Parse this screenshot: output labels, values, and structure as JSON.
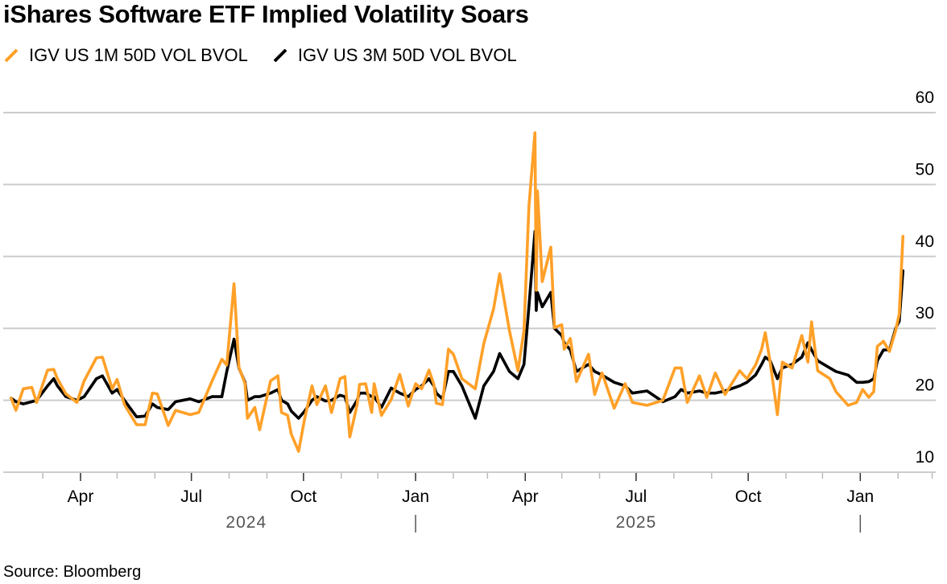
{
  "chart_data": {
    "type": "line",
    "title": "iShares Software ETF Implied Volatility Soars",
    "source": "Source: Bloomberg",
    "ylim": [
      10,
      60
    ],
    "yticks": [
      10,
      20,
      30,
      40,
      50,
      60
    ],
    "y_axis_side": "right",
    "grid": true,
    "legend_placement": "top-left",
    "xlim": [
      "2024-02-04",
      "2026-02-05"
    ],
    "xtick_labels": [
      {
        "label": "Apr",
        "date": "2024-04-01"
      },
      {
        "label": "Jul",
        "date": "2024-07-01"
      },
      {
        "label": "Oct",
        "date": "2024-10-01"
      },
      {
        "label": "Jan",
        "date": "2025-01-01"
      },
      {
        "label": "Apr",
        "date": "2025-04-01"
      },
      {
        "label": "Jul",
        "date": "2025-07-01"
      },
      {
        "label": "Oct",
        "date": "2025-10-01"
      },
      {
        "label": "Jan",
        "date": "2026-01-01"
      }
    ],
    "year_labels": [
      {
        "label": "2024",
        "date": "2024-08-15"
      },
      {
        "label": "2025",
        "date": "2025-07-01"
      }
    ],
    "dates": [
      "2024-02-04",
      "2024-02-08",
      "2024-02-14",
      "2024-02-21",
      "2024-02-25",
      "2024-03-05",
      "2024-03-10",
      "2024-03-13",
      "2024-03-20",
      "2024-03-29",
      "2024-04-04",
      "2024-04-14",
      "2024-04-19",
      "2024-04-27",
      "2024-05-01",
      "2024-05-07",
      "2024-05-17",
      "2024-05-24",
      "2024-05-30",
      "2024-06-03",
      "2024-06-12",
      "2024-06-18",
      "2024-06-30",
      "2024-07-07",
      "2024-07-18",
      "2024-07-26",
      "2024-07-30",
      "2024-08-05",
      "2024-08-09",
      "2024-08-14",
      "2024-08-16",
      "2024-08-22",
      "2024-08-26",
      "2024-09-04",
      "2024-09-10",
      "2024-09-13",
      "2024-09-18",
      "2024-09-21",
      "2024-09-27",
      "2024-10-02",
      "2024-10-08",
      "2024-10-12",
      "2024-10-19",
      "2024-10-24",
      "2024-10-31",
      "2024-11-04",
      "2024-11-08",
      "2024-11-14",
      "2024-11-16",
      "2024-11-21",
      "2024-11-26",
      "2024-11-28",
      "2024-12-04",
      "2024-12-12",
      "2024-12-19",
      "2024-12-26",
      "2025-01-01",
      "2025-01-06",
      "2025-01-12",
      "2025-01-16",
      "2025-01-18",
      "2025-01-23",
      "2025-01-28",
      "2025-02-01",
      "2025-02-08",
      "2025-02-19",
      "2025-02-26",
      "2025-03-06",
      "2025-03-11",
      "2025-03-19",
      "2025-03-26",
      "2025-03-31",
      "2025-04-04",
      "2025-04-09",
      "2025-04-10",
      "2025-04-11",
      "2025-04-15",
      "2025-04-22",
      "2025-04-25",
      "2025-05-01",
      "2025-05-03",
      "2025-05-08",
      "2025-05-13",
      "2025-05-23",
      "2025-05-28",
      "2025-06-03",
      "2025-06-13",
      "2025-06-22",
      "2025-06-28",
      "2025-07-10",
      "2025-07-23",
      "2025-08-02",
      "2025-08-07",
      "2025-08-12",
      "2025-08-22",
      "2025-08-28",
      "2025-09-04",
      "2025-09-12",
      "2025-09-24",
      "2025-09-30",
      "2025-10-07",
      "2025-10-12",
      "2025-10-15",
      "2025-10-19",
      "2025-10-25",
      "2025-10-29",
      "2025-11-06",
      "2025-11-14",
      "2025-11-19",
      "2025-11-22",
      "2025-11-27",
      "2025-12-07",
      "2025-12-12",
      "2025-12-22",
      "2025-12-29",
      "2026-01-03",
      "2026-01-08",
      "2026-01-12",
      "2026-01-15",
      "2026-01-20",
      "2026-01-25",
      "2026-01-30",
      "2026-02-02",
      "2026-02-05"
    ],
    "series": [
      {
        "name": "IGV US 3M 50D VOL BVOL",
        "color": "#000000",
        "values": [
          20.3,
          19.8,
          19.5,
          19.8,
          20,
          22,
          23,
          22,
          20.5,
          20,
          20.5,
          23,
          23.4,
          21,
          21.5,
          20,
          17.7,
          17.8,
          19.5,
          19,
          18.7,
          19.8,
          20.2,
          19.8,
          20.5,
          20.5,
          24,
          28.5,
          24.5,
          22.5,
          20,
          20.5,
          20.5,
          21,
          21.5,
          20,
          19.5,
          18.5,
          17.5,
          18.5,
          20,
          20.5,
          19.9,
          20,
          20.7,
          20.5,
          18.3,
          20,
          21,
          21,
          20.5,
          20.5,
          19,
          21.7,
          21,
          20.5,
          21.5,
          22,
          23,
          22,
          21,
          20.2,
          24,
          24,
          22,
          17.5,
          22,
          24,
          26.5,
          24,
          23,
          25,
          33,
          43.5,
          32.5,
          35,
          33,
          35,
          30,
          29,
          28,
          27,
          24,
          25,
          24,
          23.5,
          22.5,
          22,
          21,
          21.3,
          19.8,
          20.5,
          21.5,
          21,
          21.3,
          21,
          21,
          21.3,
          22,
          22.5,
          23.5,
          25,
          26,
          25.5,
          23,
          24.5,
          25,
          26,
          28,
          27,
          25.5,
          24.5,
          24,
          23.5,
          22.5,
          22.5,
          22.6,
          23,
          25.5,
          27,
          27,
          30,
          31,
          38
        ]
      },
      {
        "name": "IGV US 1M 50D VOL BVOL",
        "color": "#ffa028",
        "values": [
          20.3,
          18.6,
          21.6,
          21.8,
          19.7,
          24.2,
          24.3,
          23,
          20.9,
          19.7,
          22.7,
          25.9,
          26,
          21.6,
          22.9,
          19.4,
          16.6,
          16.6,
          21,
          20.9,
          16.5,
          18.6,
          18,
          18.3,
          22.7,
          25.7,
          24.9,
          36.2,
          24.6,
          22.3,
          17.5,
          19,
          15.9,
          22.7,
          23.4,
          18.3,
          17.9,
          15.3,
          12.9,
          17.5,
          22,
          19.4,
          22,
          18.3,
          23,
          23.3,
          14.9,
          19.4,
          22.2,
          22.3,
          18.3,
          22.3,
          17.9,
          20.1,
          23.6,
          19.2,
          22.3,
          21.6,
          24.2,
          22.2,
          19.6,
          19.4,
          27.1,
          26.4,
          23,
          21.6,
          27.9,
          32.7,
          37.6,
          29.7,
          24.1,
          29.7,
          46.9,
          57.2,
          35.3,
          49.1,
          36.5,
          41.3,
          30.1,
          30.5,
          27.1,
          28.6,
          22.6,
          26.4,
          20.8,
          23.8,
          18.9,
          22.3,
          19.7,
          19.3,
          20,
          24.5,
          24.5,
          19.7,
          23.4,
          20.4,
          23.8,
          20.8,
          24.1,
          23,
          24.9,
          27.1,
          29.4,
          25.3,
          18,
          25.3,
          24.5,
          29,
          25.3,
          30.9,
          24.1,
          23,
          21.2,
          19.3,
          19.7,
          21.5,
          20.4,
          21.2,
          27.5,
          28.2,
          26.8,
          29.7,
          32,
          42.8
        ]
      }
    ]
  }
}
